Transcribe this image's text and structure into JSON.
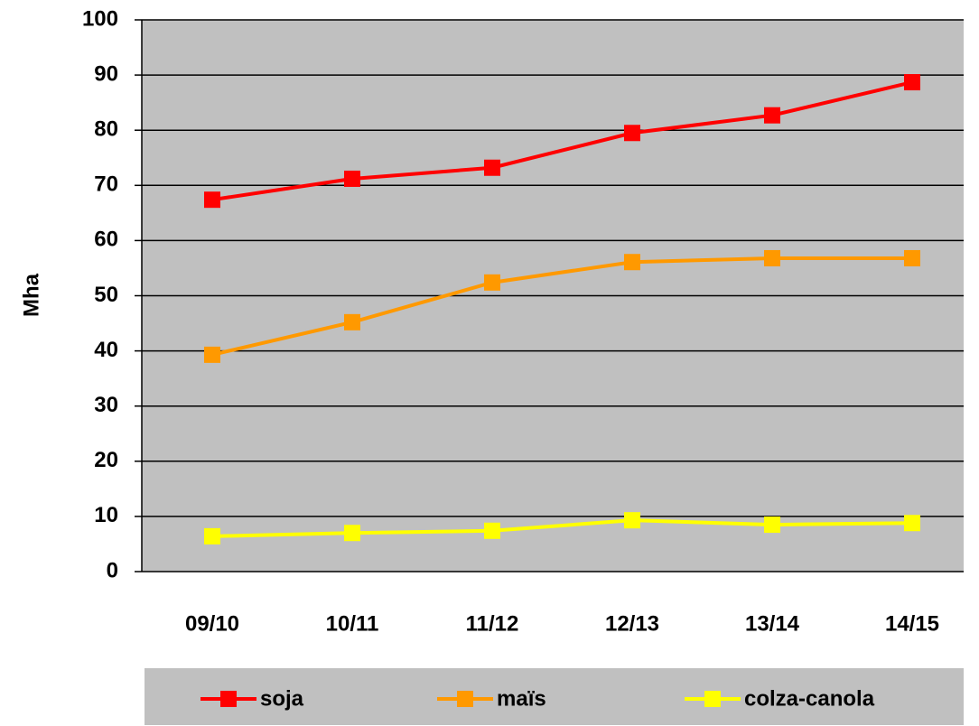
{
  "chart_data": {
    "type": "line",
    "categories": [
      "09/10",
      "10/11",
      "11/12",
      "12/13",
      "13/14",
      "14/15"
    ],
    "series": [
      {
        "name": "soja",
        "color": "#ff0000",
        "values": [
          67.4,
          71.2,
          73.2,
          79.5,
          82.7,
          88.7
        ]
      },
      {
        "name": "maïs",
        "color": "#ff9900",
        "values": [
          39.3,
          45.2,
          52.4,
          56.1,
          56.8,
          56.8
        ]
      },
      {
        "name": "colza-canola",
        "color": "#ffff00",
        "values": [
          6.4,
          7.0,
          7.4,
          9.3,
          8.5,
          8.8
        ]
      }
    ],
    "ylabel": "Mha",
    "ylim": [
      0,
      100
    ],
    "yticks": [
      0,
      10,
      20,
      30,
      40,
      50,
      60,
      70,
      80,
      90,
      100
    ],
    "grid": true,
    "legend": "bottom",
    "background": "#c0c0c0"
  }
}
